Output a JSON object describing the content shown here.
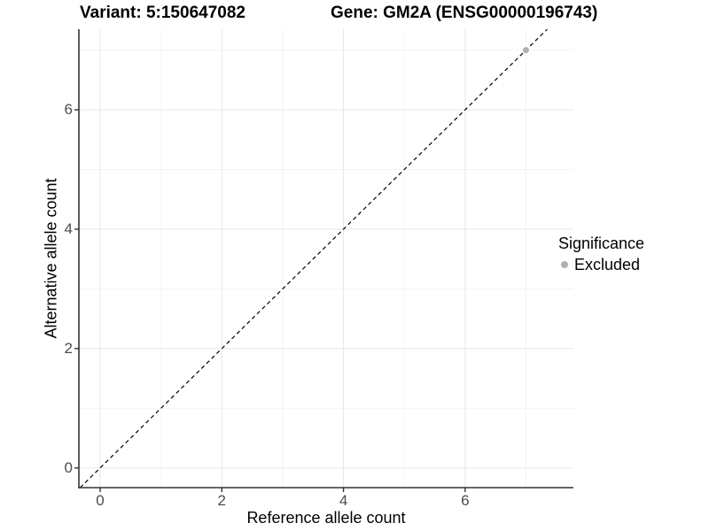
{
  "title": {
    "left": "Variant: 5:150647082",
    "right": "Gene: GM2A (ENSG00000196743)"
  },
  "chart_data": {
    "type": "scatter",
    "xlabel": "Reference allele count",
    "ylabel": "Alternative allele count",
    "xlim": [
      -0.35,
      7.78
    ],
    "ylim": [
      -0.33,
      7.35
    ],
    "x_major_ticks": [
      0,
      2,
      4,
      6
    ],
    "x_minor_ticks": [
      1,
      3,
      5,
      7
    ],
    "y_major_ticks": [
      0,
      2,
      4,
      6
    ],
    "y_minor_ticks": [
      1,
      3,
      5,
      7
    ],
    "grid": true,
    "reference_line": {
      "kind": "identity",
      "style": "dashed",
      "color": "#000000"
    },
    "series": [
      {
        "name": "Excluded",
        "color": "#b0b0b0",
        "points": [
          {
            "x": 7,
            "y": 7
          }
        ]
      }
    ],
    "legend": {
      "position": "right",
      "title": "Significance",
      "items": [
        {
          "label": "Excluded",
          "color": "#b0b0b0"
        }
      ]
    },
    "colors": {
      "grid_major": "#e9e9e9",
      "grid_minor": "#f3f3f3",
      "axis_line": "#333333",
      "tick_text": "#4d4d4d"
    }
  }
}
